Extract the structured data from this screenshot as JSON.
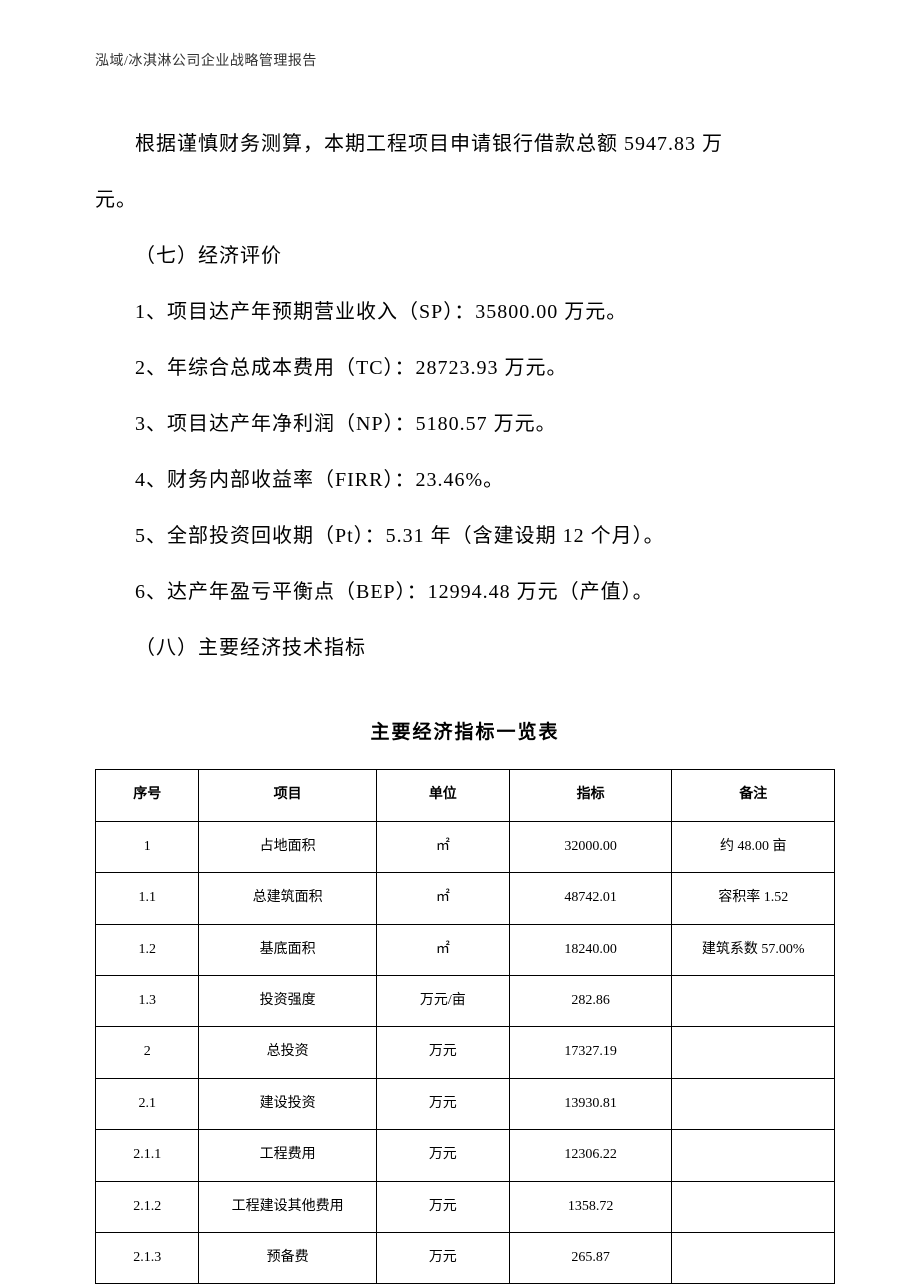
{
  "header": "泓域/冰淇淋公司企业战略管理报告",
  "paragraph1_line1": "根据谨慎财务测算，本期工程项目申请银行借款总额 5947.83 万",
  "paragraph1_line2": "元。",
  "section7_heading": "（七）经济评价",
  "section7_items": [
    "1、项目达产年预期营业收入（SP）：35800.00 万元。",
    "2、年综合总成本费用（TC）：28723.93 万元。",
    "3、项目达产年净利润（NP）：5180.57 万元。",
    "4、财务内部收益率（FIRR）：23.46%。",
    "5、全部投资回收期（Pt）：5.31 年（含建设期 12 个月）。",
    "6、达产年盈亏平衡点（BEP）：12994.48 万元（产值）。"
  ],
  "section8_heading": "（八）主要经济技术指标",
  "table": {
    "title": "主要经济指标一览表",
    "headers": [
      "序号",
      "项目",
      "单位",
      "指标",
      "备注"
    ],
    "rows": [
      [
        "1",
        "占地面积",
        "㎡",
        "32000.00",
        "约 48.00 亩"
      ],
      [
        "1.1",
        "总建筑面积",
        "㎡",
        "48742.01",
        "容积率 1.52"
      ],
      [
        "1.2",
        "基底面积",
        "㎡",
        "18240.00",
        "建筑系数 57.00%"
      ],
      [
        "1.3",
        "投资强度",
        "万元/亩",
        "282.86",
        ""
      ],
      [
        "2",
        "总投资",
        "万元",
        "17327.19",
        ""
      ],
      [
        "2.1",
        "建设投资",
        "万元",
        "13930.81",
        ""
      ],
      [
        "2.1.1",
        "工程费用",
        "万元",
        "12306.22",
        ""
      ],
      [
        "2.1.2",
        "工程建设其他费用",
        "万元",
        "1358.72",
        ""
      ],
      [
        "2.1.3",
        "预备费",
        "万元",
        "265.87",
        ""
      ]
    ]
  }
}
